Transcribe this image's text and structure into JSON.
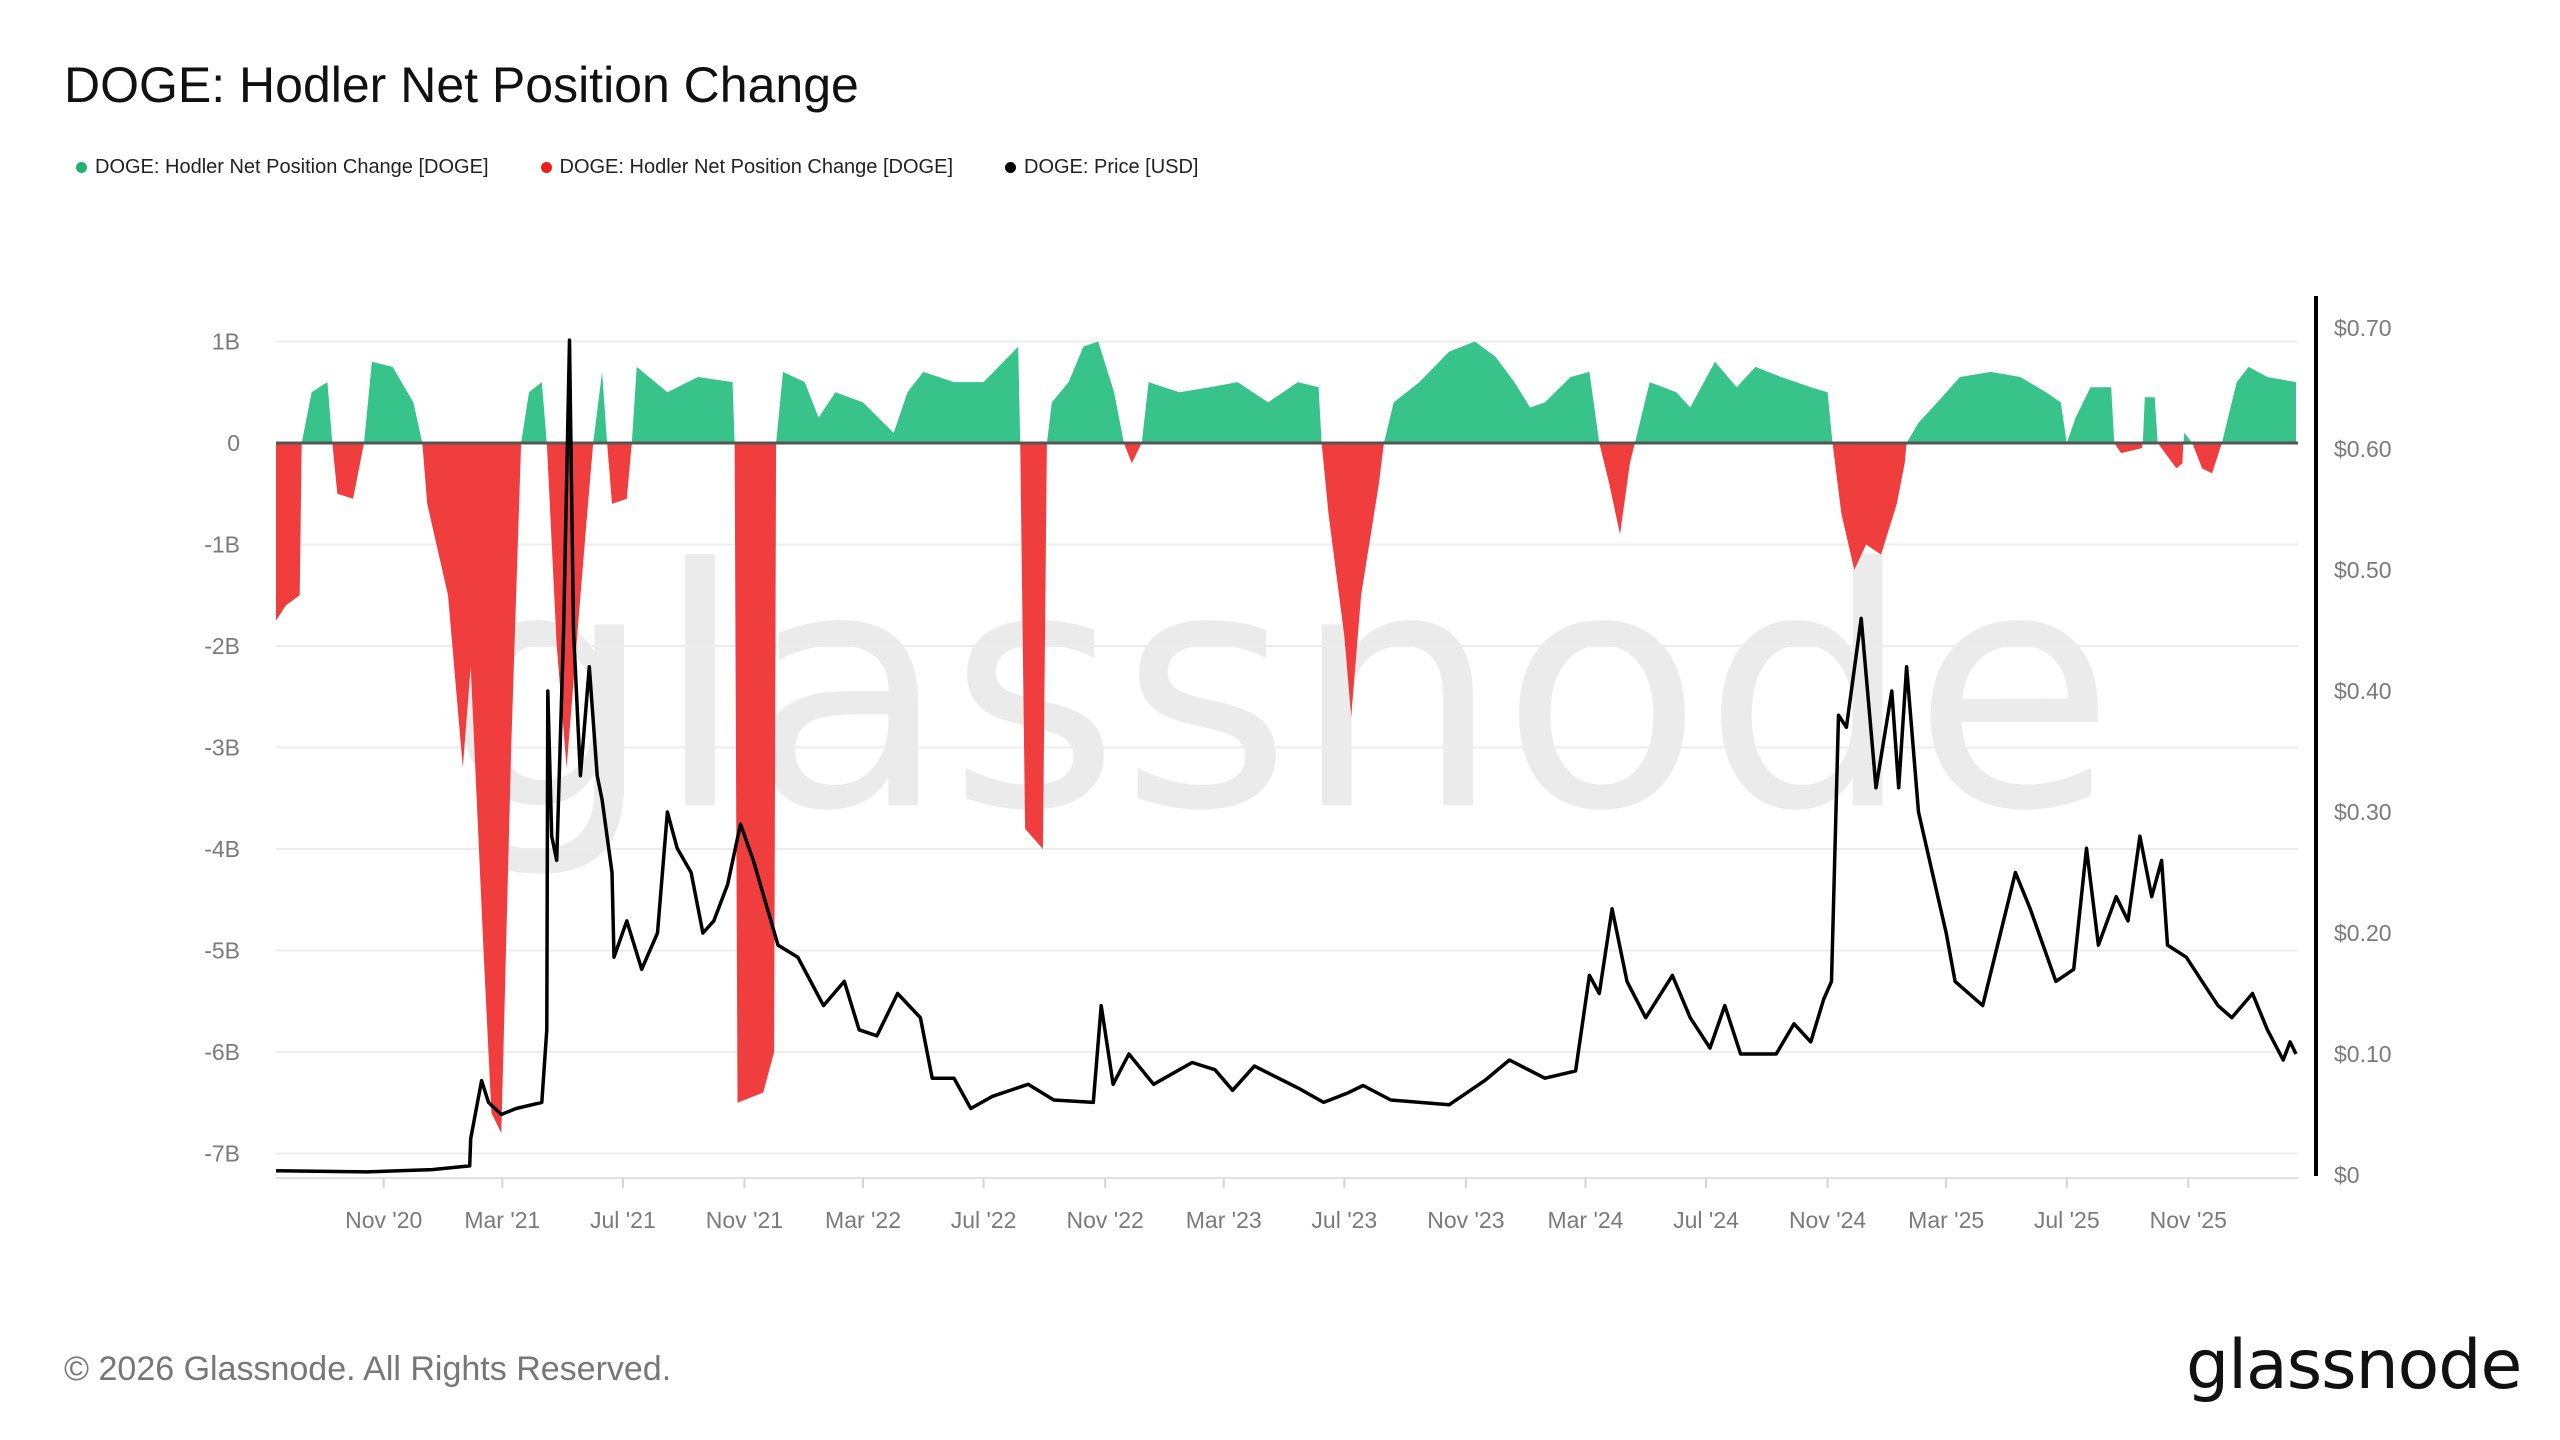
{
  "chart_data": {
    "type": "area",
    "title": "DOGE: Hodler Net Position Change",
    "legend": [
      {
        "name": "DOGE: Hodler Net Position Change [DOGE]",
        "color": "#38c38a"
      },
      {
        "name": "DOGE: Hodler Net Position Change [DOGE]",
        "color": "#f03e3e"
      },
      {
        "name": "DOGE: Price [USD]",
        "color": "#000000"
      }
    ],
    "legend_placement": "top-left",
    "grid": true,
    "x_range": [
      "2020-07-15",
      "2026-02-20"
    ],
    "x_ticks": [
      {
        "date": "2020-11-01",
        "label": "Nov '20"
      },
      {
        "date": "2021-03-01",
        "label": "Mar '21"
      },
      {
        "date": "2021-07-01",
        "label": "Jul '21"
      },
      {
        "date": "2021-11-01",
        "label": "Nov '21"
      },
      {
        "date": "2022-03-01",
        "label": "Mar '22"
      },
      {
        "date": "2022-07-01",
        "label": "Jul '22"
      },
      {
        "date": "2022-11-01",
        "label": "Nov '22"
      },
      {
        "date": "2023-03-01",
        "label": "Mar '23"
      },
      {
        "date": "2023-07-01",
        "label": "Jul '23"
      },
      {
        "date": "2023-11-01",
        "label": "Nov '23"
      },
      {
        "date": "2024-03-01",
        "label": "Mar '24"
      },
      {
        "date": "2024-07-01",
        "label": "Jul '24"
      },
      {
        "date": "2024-11-01",
        "label": "Nov '24"
      },
      {
        "date": "2025-03-01",
        "label": "Mar '25"
      },
      {
        "date": "2025-07-01",
        "label": "Jul '25"
      },
      {
        "date": "2025-11-01",
        "label": "Nov '25"
      }
    ],
    "y_left": {
      "unit": "DOGE",
      "range": [
        -7.2,
        1.1
      ],
      "ticks": [
        {
          "value": 1,
          "label": "1B"
        },
        {
          "value": 0,
          "label": "0"
        },
        {
          "value": -1,
          "label": "-1B"
        },
        {
          "value": -2,
          "label": "-2B"
        },
        {
          "value": -3,
          "label": "-3B"
        },
        {
          "value": -4,
          "label": "-4B"
        },
        {
          "value": -5,
          "label": "-5B"
        },
        {
          "value": -6,
          "label": "-6B"
        },
        {
          "value": -7,
          "label": "-7B"
        }
      ]
    },
    "y_right": {
      "unit": "USD",
      "range": [
        0,
        0.7
      ],
      "ticks": [
        {
          "value": 0.7,
          "label": "$0.70"
        },
        {
          "value": 0.6,
          "label": "$0.60"
        },
        {
          "value": 0.5,
          "label": "$0.50"
        },
        {
          "value": 0.4,
          "label": "$0.40"
        },
        {
          "value": 0.3,
          "label": "$0.30"
        },
        {
          "value": 0.2,
          "label": "$0.20"
        },
        {
          "value": 0.1,
          "label": "$0.10"
        },
        {
          "value": 0,
          "label": "$0"
        }
      ]
    },
    "hodler_net_position_change_billions": [
      [
        "2020-07-15",
        -1.75
      ],
      [
        "2020-07-25",
        -1.6
      ],
      [
        "2020-08-08",
        -1.5
      ],
      [
        "2020-08-10",
        0
      ],
      [
        "2020-08-20",
        0.5
      ],
      [
        "2020-09-05",
        0.6
      ],
      [
        "2020-09-10",
        0
      ],
      [
        "2020-09-15",
        -0.5
      ],
      [
        "2020-10-01",
        -0.55
      ],
      [
        "2020-10-12",
        0
      ],
      [
        "2020-10-20",
        0.8
      ],
      [
        "2020-11-10",
        0.75
      ],
      [
        "2020-12-01",
        0.4
      ],
      [
        "2020-12-10",
        0
      ],
      [
        "2020-12-15",
        -0.6
      ],
      [
        "2021-01-05",
        -1.5
      ],
      [
        "2021-01-20",
        -3.2
      ],
      [
        "2021-01-28",
        -2.2
      ],
      [
        "2021-02-10",
        -5.0
      ],
      [
        "2021-02-18",
        -6.6
      ],
      [
        "2021-02-28",
        -6.8
      ],
      [
        "2021-03-10",
        -3
      ],
      [
        "2021-03-20",
        0
      ],
      [
        "2021-03-28",
        0.5
      ],
      [
        "2021-04-10",
        0.6
      ],
      [
        "2021-04-15",
        0
      ],
      [
        "2021-04-25",
        -2.0
      ],
      [
        "2021-05-05",
        -3.2
      ],
      [
        "2021-05-15",
        -2.0
      ],
      [
        "2021-05-25",
        -0.8
      ],
      [
        "2021-06-01",
        0
      ],
      [
        "2021-06-10",
        0.7
      ],
      [
        "2021-06-15",
        0
      ],
      [
        "2021-06-20",
        -0.6
      ],
      [
        "2021-07-05",
        -0.55
      ],
      [
        "2021-07-10",
        0
      ],
      [
        "2021-07-15",
        0.75
      ],
      [
        "2021-08-15",
        0.5
      ],
      [
        "2021-09-15",
        0.65
      ],
      [
        "2021-10-20",
        0.6
      ],
      [
        "2021-10-22",
        0
      ],
      [
        "2021-10-25",
        -6.5
      ],
      [
        "2021-11-20",
        -6.4
      ],
      [
        "2021-12-01",
        -6.0
      ],
      [
        "2021-12-03",
        0
      ],
      [
        "2021-12-10",
        0.7
      ],
      [
        "2022-01-01",
        0.6
      ],
      [
        "2022-01-15",
        0.25
      ],
      [
        "2022-02-01",
        0.5
      ],
      [
        "2022-03-01",
        0.4
      ],
      [
        "2022-04-01",
        0.1
      ],
      [
        "2022-04-15",
        0.5
      ],
      [
        "2022-05-01",
        0.7
      ],
      [
        "2022-06-01",
        0.6
      ],
      [
        "2022-07-01",
        0.6
      ],
      [
        "2022-08-05",
        0.95
      ],
      [
        "2022-08-07",
        0
      ],
      [
        "2022-08-12",
        -3.8
      ],
      [
        "2022-08-30",
        -4.0
      ],
      [
        "2022-09-03",
        0
      ],
      [
        "2022-09-08",
        0.4
      ],
      [
        "2022-09-25",
        0.6
      ],
      [
        "2022-10-10",
        0.95
      ],
      [
        "2022-10-25",
        1.0
      ],
      [
        "2022-11-10",
        0.5
      ],
      [
        "2022-11-20",
        0
      ],
      [
        "2022-11-28",
        -0.2
      ],
      [
        "2022-12-08",
        0
      ],
      [
        "2022-12-15",
        0.6
      ],
      [
        "2023-01-15",
        0.5
      ],
      [
        "2023-02-15",
        0.55
      ],
      [
        "2023-03-15",
        0.6
      ],
      [
        "2023-04-15",
        0.4
      ],
      [
        "2023-05-15",
        0.6
      ],
      [
        "2023-06-05",
        0.55
      ],
      [
        "2023-06-08",
        0
      ],
      [
        "2023-06-15",
        -0.7
      ],
      [
        "2023-07-01",
        -1.9
      ],
      [
        "2023-07-08",
        -2.7
      ],
      [
        "2023-07-18",
        -1.5
      ],
      [
        "2023-08-05",
        -0.4
      ],
      [
        "2023-08-10",
        0
      ],
      [
        "2023-08-20",
        0.4
      ],
      [
        "2023-09-15",
        0.6
      ],
      [
        "2023-10-15",
        0.9
      ],
      [
        "2023-11-10",
        1.0
      ],
      [
        "2023-12-01",
        0.85
      ],
      [
        "2023-12-20",
        0.6
      ],
      [
        "2024-01-05",
        0.35
      ],
      [
        "2024-01-20",
        0.4
      ],
      [
        "2024-02-15",
        0.65
      ],
      [
        "2024-03-05",
        0.7
      ],
      [
        "2024-03-15",
        0
      ],
      [
        "2024-03-25",
        -0.4
      ],
      [
        "2024-04-05",
        -0.9
      ],
      [
        "2024-04-15",
        -0.2
      ],
      [
        "2024-04-20",
        0
      ],
      [
        "2024-05-05",
        0.6
      ],
      [
        "2024-06-01",
        0.5
      ],
      [
        "2024-06-15",
        0.35
      ],
      [
        "2024-07-10",
        0.8
      ],
      [
        "2024-08-01",
        0.55
      ],
      [
        "2024-08-20",
        0.75
      ],
      [
        "2024-09-15",
        0.65
      ],
      [
        "2024-10-15",
        0.55
      ],
      [
        "2024-11-01",
        0.5
      ],
      [
        "2024-11-06",
        0
      ],
      [
        "2024-11-15",
        -0.7
      ],
      [
        "2024-11-28",
        -1.25
      ],
      [
        "2024-12-10",
        -1.0
      ],
      [
        "2024-12-25",
        -1.1
      ],
      [
        "2025-01-10",
        -0.6
      ],
      [
        "2025-01-18",
        -0.2
      ],
      [
        "2025-01-20",
        0
      ],
      [
        "2025-02-01",
        0.2
      ],
      [
        "2025-02-20",
        0.4
      ],
      [
        "2025-03-15",
        0.65
      ],
      [
        "2025-04-15",
        0.7
      ],
      [
        "2025-05-15",
        0.65
      ],
      [
        "2025-06-10",
        0.5
      ],
      [
        "2025-06-25",
        0.4
      ],
      [
        "2025-07-01",
        0
      ],
      [
        "2025-07-10",
        0.25
      ],
      [
        "2025-07-25",
        0.55
      ],
      [
        "2025-08-15",
        0.55
      ],
      [
        "2025-08-18",
        0
      ],
      [
        "2025-08-25",
        -0.1
      ],
      [
        "2025-09-15",
        -0.05
      ],
      [
        "2025-09-16",
        0
      ],
      [
        "2025-09-18",
        0.45
      ],
      [
        "2025-09-28",
        0.45
      ],
      [
        "2025-10-01",
        0
      ],
      [
        "2025-10-20",
        -0.25
      ],
      [
        "2025-10-26",
        -0.2
      ],
      [
        "2025-10-27",
        0
      ],
      [
        "2025-10-28",
        0.1
      ],
      [
        "2025-11-05",
        0
      ],
      [
        "2025-11-15",
        -0.25
      ],
      [
        "2025-11-25",
        -0.3
      ],
      [
        "2025-12-05",
        0
      ],
      [
        "2025-12-20",
        0.6
      ],
      [
        "2026-01-01",
        0.75
      ],
      [
        "2026-01-20",
        0.65
      ],
      [
        "2026-02-18",
        0.6
      ]
    ],
    "price_usd": [
      [
        "2020-07-15",
        0.0035
      ],
      [
        "2020-10-15",
        0.0026
      ],
      [
        "2020-12-20",
        0.0045
      ],
      [
        "2021-01-27",
        0.0075
      ],
      [
        "2021-01-28",
        0.03
      ],
      [
        "2021-02-08",
        0.078
      ],
      [
        "2021-02-15",
        0.06
      ],
      [
        "2021-02-28",
        0.05
      ],
      [
        "2021-03-15",
        0.055
      ],
      [
        "2021-04-10",
        0.06
      ],
      [
        "2021-04-15",
        0.12
      ],
      [
        "2021-04-16",
        0.4
      ],
      [
        "2021-04-20",
        0.28
      ],
      [
        "2021-04-25",
        0.26
      ],
      [
        "2021-05-02",
        0.45
      ],
      [
        "2021-05-08",
        0.69
      ],
      [
        "2021-05-12",
        0.45
      ],
      [
        "2021-05-19",
        0.33
      ],
      [
        "2021-05-28",
        0.42
      ],
      [
        "2021-06-05",
        0.33
      ],
      [
        "2021-06-10",
        0.31
      ],
      [
        "2021-06-20",
        0.25
      ],
      [
        "2021-06-22",
        0.18
      ],
      [
        "2021-07-05",
        0.21
      ],
      [
        "2021-07-20",
        0.17
      ],
      [
        "2021-08-05",
        0.2
      ],
      [
        "2021-08-15",
        0.3
      ],
      [
        "2021-08-25",
        0.27
      ],
      [
        "2021-09-08",
        0.25
      ],
      [
        "2021-09-20",
        0.2
      ],
      [
        "2021-10-01",
        0.21
      ],
      [
        "2021-10-15",
        0.24
      ],
      [
        "2021-10-28",
        0.29
      ],
      [
        "2021-11-10",
        0.26
      ],
      [
        "2021-12-05",
        0.19
      ],
      [
        "2021-12-25",
        0.18
      ],
      [
        "2022-01-20",
        0.14
      ],
      [
        "2022-02-10",
        0.16
      ],
      [
        "2022-02-25",
        0.12
      ],
      [
        "2022-03-15",
        0.115
      ],
      [
        "2022-04-05",
        0.15
      ],
      [
        "2022-04-28",
        0.13
      ],
      [
        "2022-05-10",
        0.08
      ],
      [
        "2022-06-01",
        0.08
      ],
      [
        "2022-06-18",
        0.055
      ],
      [
        "2022-07-10",
        0.065
      ],
      [
        "2022-08-15",
        0.075
      ],
      [
        "2022-09-10",
        0.062
      ],
      [
        "2022-10-20",
        0.06
      ],
      [
        "2022-10-28",
        0.14
      ],
      [
        "2022-11-09",
        0.075
      ],
      [
        "2022-11-25",
        0.1
      ],
      [
        "2022-12-20",
        0.075
      ],
      [
        "2023-01-28",
        0.093
      ],
      [
        "2023-02-20",
        0.087
      ],
      [
        "2023-03-10",
        0.07
      ],
      [
        "2023-04-01",
        0.09
      ],
      [
        "2023-04-18",
        0.083
      ],
      [
        "2023-05-15",
        0.072
      ],
      [
        "2023-06-10",
        0.06
      ],
      [
        "2023-07-05",
        0.068
      ],
      [
        "2023-07-20",
        0.074
      ],
      [
        "2023-08-17",
        0.062
      ],
      [
        "2023-10-15",
        0.058
      ],
      [
        "2023-11-20",
        0.078
      ],
      [
        "2023-12-15",
        0.095
      ],
      [
        "2024-01-20",
        0.08
      ],
      [
        "2024-02-20",
        0.086
      ],
      [
        "2024-03-05",
        0.165
      ],
      [
        "2024-03-15",
        0.15
      ],
      [
        "2024-03-28",
        0.22
      ],
      [
        "2024-04-12",
        0.16
      ],
      [
        "2024-05-01",
        0.13
      ],
      [
        "2024-05-28",
        0.165
      ],
      [
        "2024-06-15",
        0.13
      ],
      [
        "2024-07-05",
        0.105
      ],
      [
        "2024-07-20",
        0.14
      ],
      [
        "2024-08-05",
        0.1
      ],
      [
        "2024-09-10",
        0.1
      ],
      [
        "2024-09-28",
        0.125
      ],
      [
        "2024-10-15",
        0.11
      ],
      [
        "2024-10-28",
        0.145
      ],
      [
        "2024-11-05",
        0.16
      ],
      [
        "2024-11-12",
        0.38
      ],
      [
        "2024-11-20",
        0.37
      ],
      [
        "2024-12-05",
        0.46
      ],
      [
        "2024-12-20",
        0.32
      ],
      [
        "2025-01-05",
        0.4
      ],
      [
        "2025-01-12",
        0.32
      ],
      [
        "2025-01-20",
        0.42
      ],
      [
        "2025-02-01",
        0.3
      ],
      [
        "2025-02-15",
        0.25
      ],
      [
        "2025-03-01",
        0.2
      ],
      [
        "2025-03-10",
        0.16
      ],
      [
        "2025-04-07",
        0.14
      ],
      [
        "2025-05-10",
        0.25
      ],
      [
        "2025-05-25",
        0.22
      ],
      [
        "2025-06-20",
        0.16
      ],
      [
        "2025-07-08",
        0.17
      ],
      [
        "2025-07-21",
        0.27
      ],
      [
        "2025-08-02",
        0.19
      ],
      [
        "2025-08-20",
        0.23
      ],
      [
        "2025-09-01",
        0.21
      ],
      [
        "2025-09-13",
        0.28
      ],
      [
        "2025-09-25",
        0.23
      ],
      [
        "2025-10-05",
        0.26
      ],
      [
        "2025-10-11",
        0.19
      ],
      [
        "2025-10-30",
        0.18
      ],
      [
        "2025-11-15",
        0.16
      ],
      [
        "2025-12-01",
        0.14
      ],
      [
        "2025-12-15",
        0.13
      ],
      [
        "2026-01-05",
        0.15
      ],
      [
        "2026-01-20",
        0.12
      ],
      [
        "2026-02-05",
        0.095
      ],
      [
        "2026-02-12",
        0.11
      ],
      [
        "2026-02-18",
        0.1
      ]
    ],
    "colors": {
      "positive": "#38c38a",
      "negative": "#f03e3e",
      "price": "#000000",
      "zero_line": "#555555",
      "grid": "#ececec"
    }
  },
  "watermark": "glassnode",
  "footer": {
    "copyright": "© 2026 Glassnode. All Rights Reserved.",
    "logo": "glassnode"
  }
}
